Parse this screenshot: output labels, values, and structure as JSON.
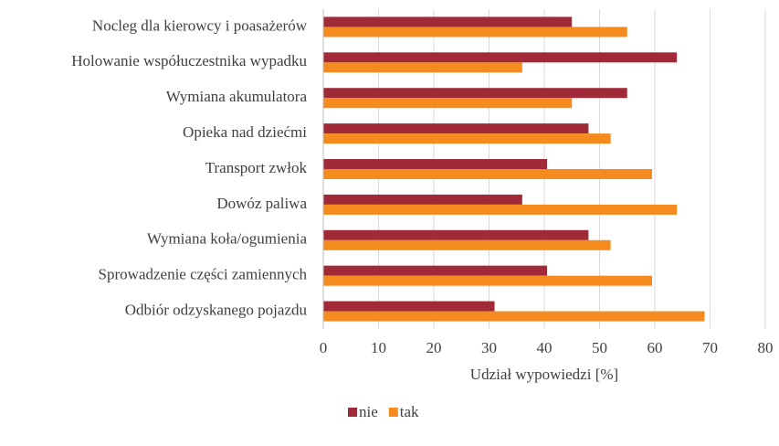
{
  "chart_data": {
    "type": "hbar",
    "categories": [
      "Nocleg dla kierowcy i poasażerów",
      "Holowanie współuczestnika wypadku",
      "Wymiana akumulatora",
      "Opieka nad dziećmi",
      "Transport zwłok",
      "Dowóz paliwa",
      "Wymiana koła/ogumienia",
      "Sprowadzenie części zamiennych",
      "Odbiór odzyskanego pojazdu"
    ],
    "series": [
      {
        "name": "nie",
        "color": "#a12a38",
        "values": [
          45,
          64,
          55,
          48,
          40.5,
          36,
          48,
          40.5,
          31
        ]
      },
      {
        "name": "tak",
        "color": "#f58a1e",
        "values": [
          55,
          36,
          45,
          52,
          59.5,
          64,
          52,
          59.5,
          69
        ]
      }
    ],
    "xlabel": "Udział wypowiedzi [%]",
    "xlim": [
      0,
      80
    ],
    "xticks": [
      0,
      10,
      20,
      30,
      40,
      50,
      60,
      70,
      80
    ],
    "grid": true,
    "legend": "bottom"
  }
}
